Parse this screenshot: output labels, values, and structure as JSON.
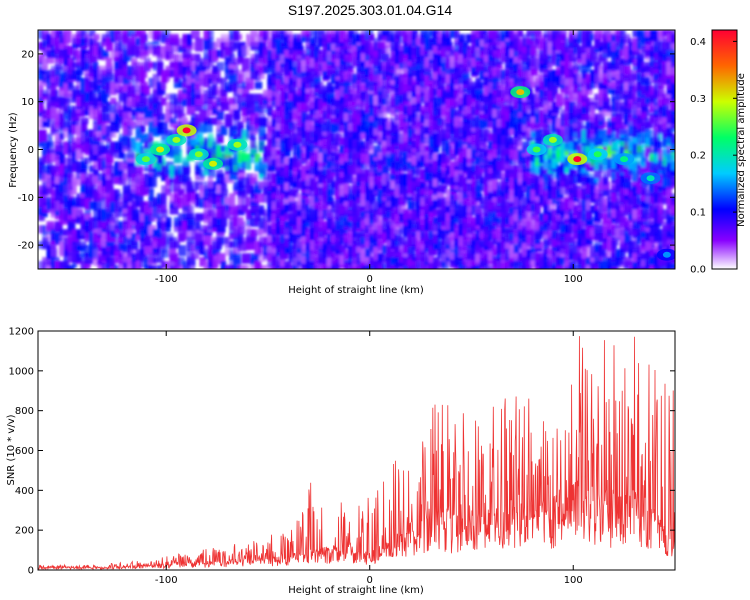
{
  "title": "S197.2025.303.01.04.G14",
  "chart_data": [
    {
      "type": "heatmap",
      "xlabel": "Height of straight line (km)",
      "ylabel": "Frequency (Hz)",
      "xlim": [
        -163,
        150
      ],
      "ylim": [
        -25,
        25
      ],
      "xticks": [
        -100,
        0,
        100
      ],
      "yticks": [
        -20,
        -10,
        0,
        10,
        20
      ],
      "colorbar": {
        "label": "Normalized spectral amplitude",
        "range": [
          0.0,
          0.42
        ],
        "ticks": [
          0.0,
          0.1,
          0.2,
          0.3,
          0.4
        ]
      },
      "hotspots": [
        {
          "x": -110,
          "y": -2,
          "value": 0.26
        },
        {
          "x": -103,
          "y": 0,
          "value": 0.3
        },
        {
          "x": -95,
          "y": 2,
          "value": 0.28
        },
        {
          "x": -90,
          "y": 4,
          "value": 0.42
        },
        {
          "x": -84,
          "y": -1,
          "value": 0.27
        },
        {
          "x": -77,
          "y": -3,
          "value": 0.3
        },
        {
          "x": -65,
          "y": 1,
          "value": 0.28
        },
        {
          "x": 74,
          "y": 12,
          "value": 0.32
        },
        {
          "x": 82,
          "y": 0,
          "value": 0.25
        },
        {
          "x": 90,
          "y": 2,
          "value": 0.28
        },
        {
          "x": 102,
          "y": -2,
          "value": 0.42
        },
        {
          "x": 112,
          "y": -1,
          "value": 0.24
        },
        {
          "x": 125,
          "y": -2,
          "value": 0.22
        },
        {
          "x": 138,
          "y": -6,
          "value": 0.2
        },
        {
          "x": 146,
          "y": -22,
          "value": 0.15
        }
      ]
    },
    {
      "type": "line",
      "xlabel": "Height of straight line (km)",
      "ylabel": "SNR (10 * v/v)",
      "xlim": [
        -163,
        150
      ],
      "ylim": [
        0,
        1200
      ],
      "xticks": [
        -100,
        0,
        100
      ],
      "yticks": [
        0,
        200,
        400,
        600,
        800,
        1000,
        1200
      ],
      "color": "#ee3333",
      "envelope": {
        "x": [
          -163,
          -130,
          -105,
          -95,
          -80,
          -60,
          -48,
          -35,
          -28,
          -20,
          -10,
          0,
          10,
          18,
          25,
          35,
          45,
          55,
          65,
          75,
          85,
          95,
          102,
          110,
          115,
          125,
          130,
          140,
          145,
          150
        ],
        "peak": [
          25,
          30,
          55,
          90,
          110,
          140,
          180,
          270,
          470,
          320,
          360,
          380,
          520,
          620,
          790,
          870,
          820,
          820,
          870,
          880,
          920,
          930,
          1200,
          1050,
          1190,
          1090,
          1180,
          1140,
          1020,
          1000
        ],
        "base": [
          12,
          10,
          18,
          25,
          30,
          40,
          45,
          60,
          70,
          80,
          90,
          60,
          100,
          150,
          200,
          220,
          180,
          230,
          220,
          260,
          250,
          280,
          300,
          260,
          280,
          260,
          280,
          250,
          120,
          100
        ]
      }
    }
  ]
}
